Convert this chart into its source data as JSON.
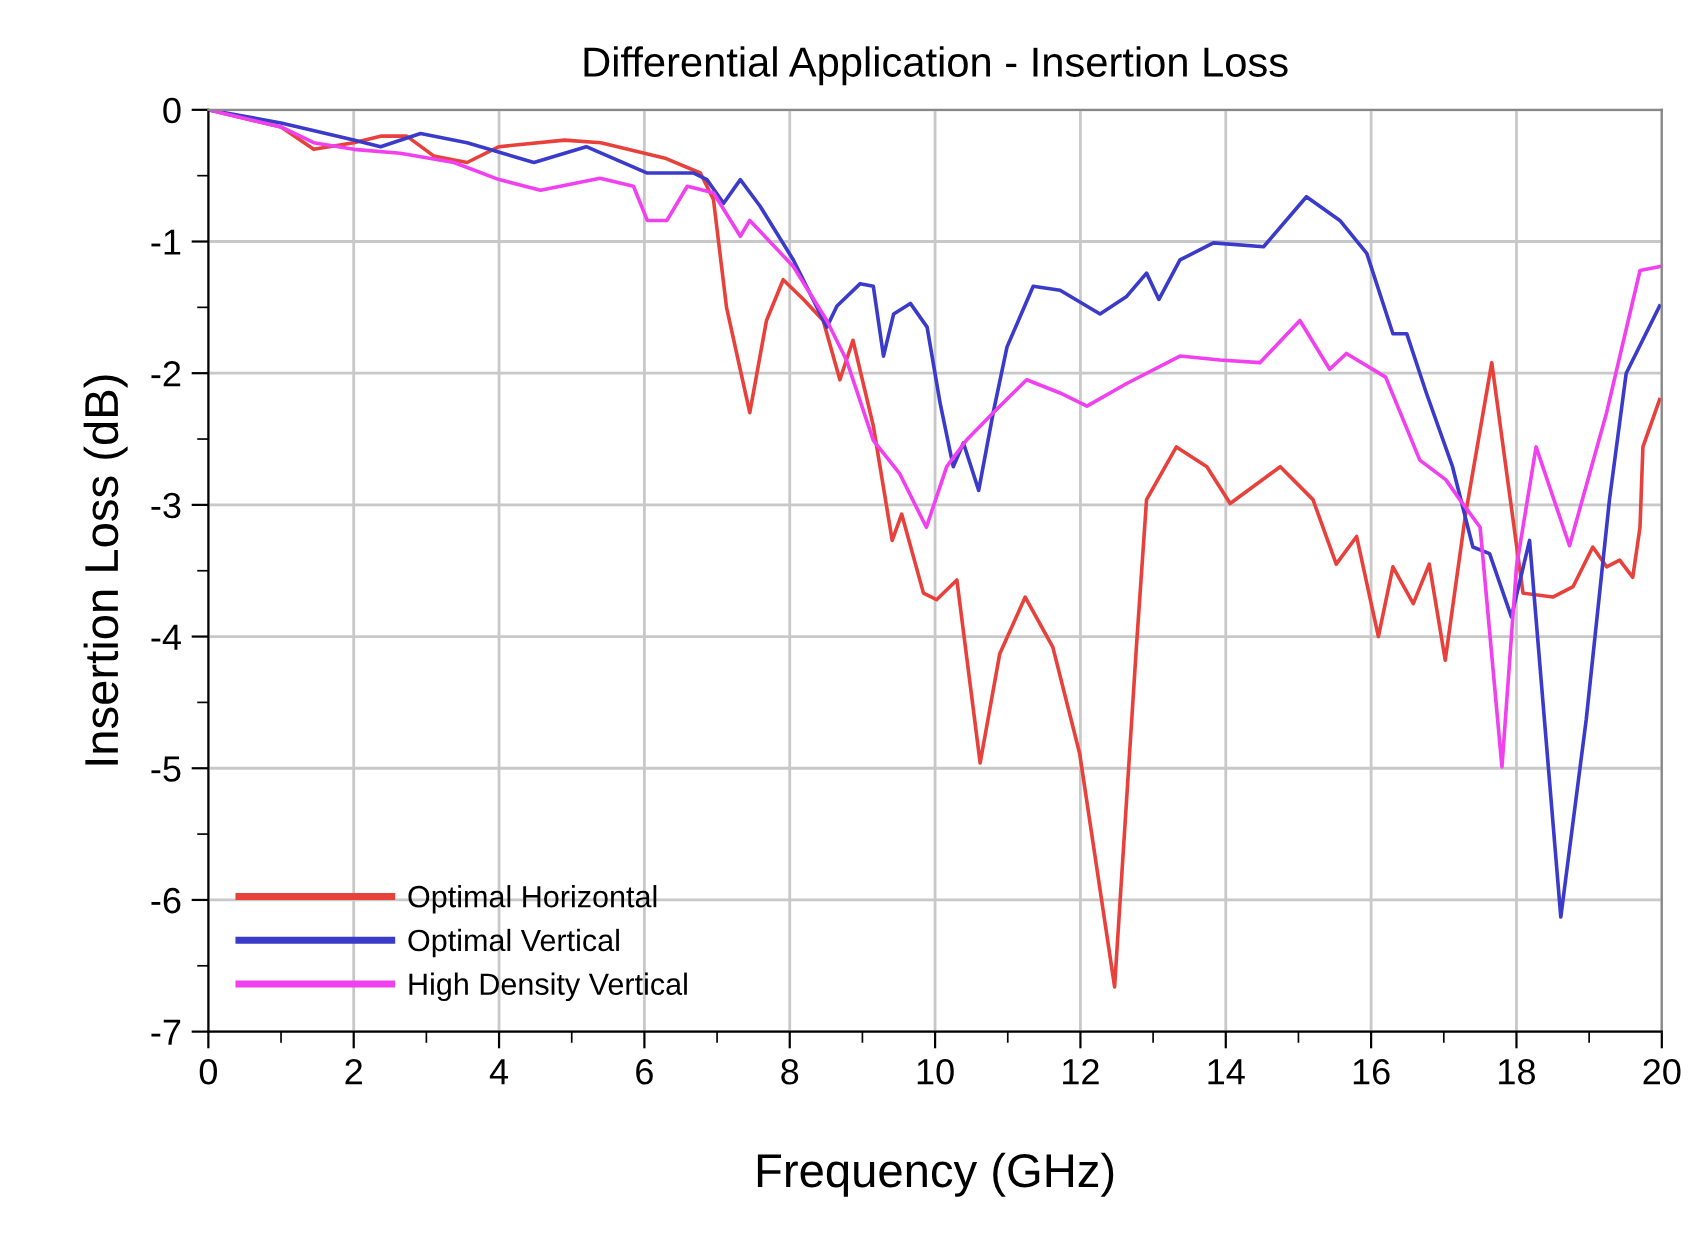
{
  "chart_data": {
    "type": "line",
    "title": "Differential Application - Insertion Loss",
    "xlabel": "Frequency (GHz)",
    "ylabel": "Insertion Loss (dB)",
    "xlim": [
      0,
      20
    ],
    "ylim": [
      -7,
      0
    ],
    "xticks": [
      0,
      2,
      4,
      6,
      8,
      10,
      12,
      14,
      16,
      18,
      20
    ],
    "yticks": [
      -7,
      -6,
      -5,
      -4,
      -3,
      -2,
      -1,
      0
    ],
    "grid": true,
    "legend": "bottom left",
    "marker": "none",
    "line_style": "solid",
    "series": [
      {
        "name": "Optimal Horizontal",
        "color": "#e8413c",
        "x": [
          0,
          1.0,
          1.45,
          2.0,
          2.37,
          2.73,
          3.1,
          3.56,
          4.0,
          4.9,
          5.4,
          6.3,
          6.77,
          6.95,
          7.13,
          7.45,
          7.68,
          7.91,
          8.19,
          8.46,
          8.69,
          8.87,
          9.15,
          9.41,
          9.54,
          9.84,
          10.02,
          10.3,
          10.62,
          10.89,
          11.24,
          11.62,
          11.99,
          12.47,
          12.77,
          12.91,
          13.32,
          13.74,
          14.06,
          14.75,
          15.2,
          15.52,
          15.8,
          16.1,
          16.3,
          16.58,
          16.8,
          17.02,
          17.3,
          17.66,
          18.09,
          18.5,
          18.78,
          19.05,
          19.24,
          19.42,
          19.6,
          19.7,
          19.74,
          19.97
        ],
        "values": [
          0,
          -0.13,
          -0.3,
          -0.25,
          -0.2,
          -0.2,
          -0.35,
          -0.4,
          -0.28,
          -0.23,
          -0.25,
          -0.37,
          -0.48,
          -0.68,
          -1.5,
          -2.3,
          -1.6,
          -1.29,
          -1.44,
          -1.6,
          -2.05,
          -1.75,
          -2.4,
          -3.27,
          -3.07,
          -3.67,
          -3.72,
          -3.57,
          -4.96,
          -4.13,
          -3.7,
          -4.08,
          -4.89,
          -6.66,
          -4.08,
          -2.96,
          -2.56,
          -2.71,
          -2.99,
          -2.71,
          -2.96,
          -3.45,
          -3.24,
          -4.0,
          -3.47,
          -3.75,
          -3.45,
          -4.18,
          -3.07,
          -1.92,
          -3.67,
          -3.7,
          -3.62,
          -3.32,
          -3.47,
          -3.42,
          -3.55,
          -3.17,
          -2.56,
          -2.2
        ]
      },
      {
        "name": "Optimal Vertical",
        "color": "#3a3acb",
        "x": [
          0,
          1.0,
          2.0,
          2.37,
          2.92,
          3.56,
          4.48,
          5.2,
          6.04,
          6.68,
          6.86,
          7.09,
          7.32,
          7.59,
          8.05,
          8.51,
          8.65,
          8.97,
          9.15,
          9.29,
          9.43,
          9.66,
          9.89,
          10.07,
          10.25,
          10.39,
          10.6,
          10.8,
          10.99,
          11.35,
          11.72,
          12.27,
          12.63,
          12.91,
          13.08,
          13.37,
          13.83,
          14.52,
          15.11,
          15.57,
          15.94,
          16.3,
          16.49,
          16.76,
          17.12,
          17.4,
          17.63,
          17.93,
          18.18,
          18.61,
          18.96,
          19.28,
          19.51,
          19.97
        ],
        "values": [
          0,
          -0.1,
          -0.23,
          -0.28,
          -0.18,
          -0.25,
          -0.4,
          -0.28,
          -0.48,
          -0.48,
          -0.53,
          -0.71,
          -0.53,
          -0.73,
          -1.14,
          -1.65,
          -1.49,
          -1.32,
          -1.34,
          -1.87,
          -1.55,
          -1.47,
          -1.65,
          -2.23,
          -2.71,
          -2.53,
          -2.89,
          -2.3,
          -1.8,
          -1.34,
          -1.37,
          -1.55,
          -1.42,
          -1.24,
          -1.44,
          -1.14,
          -1.01,
          -1.04,
          -0.66,
          -0.84,
          -1.09,
          -1.7,
          -1.7,
          -2.15,
          -2.71,
          -3.32,
          -3.37,
          -3.85,
          -3.27,
          -6.13,
          -4.63,
          -2.96,
          -2.0,
          -1.49
        ]
      },
      {
        "name": "High Density Vertical",
        "color": "#f040f0",
        "x": [
          0,
          1.0,
          1.45,
          2.0,
          2.64,
          3.38,
          4.0,
          4.57,
          5.39,
          5.85,
          6.04,
          6.31,
          6.59,
          6.95,
          7.32,
          7.45,
          8.05,
          8.51,
          8.78,
          9.15,
          9.51,
          9.88,
          10.16,
          10.43,
          10.8,
          11.26,
          11.72,
          12.09,
          12.63,
          13.37,
          13.92,
          14.47,
          15.02,
          15.43,
          15.66,
          16.2,
          16.67,
          17.03,
          17.22,
          17.5,
          17.8,
          18.0,
          18.27,
          18.73,
          19.24,
          19.7,
          19.97
        ],
        "values": [
          0,
          -0.13,
          -0.25,
          -0.3,
          -0.33,
          -0.4,
          -0.53,
          -0.61,
          -0.52,
          -0.58,
          -0.84,
          -0.84,
          -0.58,
          -0.63,
          -0.96,
          -0.84,
          -1.19,
          -1.6,
          -1.9,
          -2.51,
          -2.76,
          -3.17,
          -2.71,
          -2.51,
          -2.3,
          -2.05,
          -2.15,
          -2.25,
          -2.08,
          -1.87,
          -1.9,
          -1.92,
          -1.6,
          -1.97,
          -1.85,
          -2.03,
          -2.66,
          -2.81,
          -2.96,
          -3.17,
          -4.99,
          -3.47,
          -2.56,
          -3.31,
          -2.3,
          -1.22,
          -1.19
        ]
      }
    ]
  }
}
